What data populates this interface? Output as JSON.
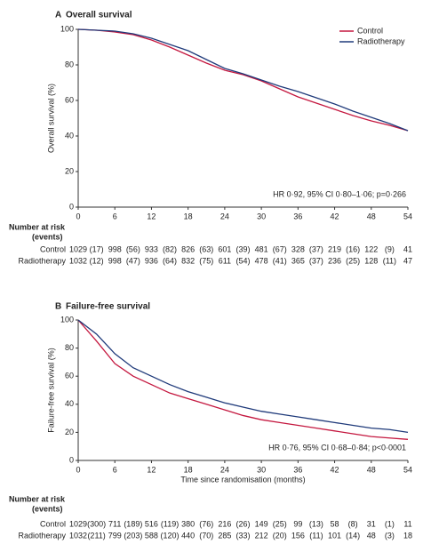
{
  "chart_data": [
    {
      "type": "line",
      "panel": "A",
      "title": "Overall survival",
      "ylabel": "Overall survival (%)",
      "x": [
        0,
        3,
        6,
        9,
        12,
        15,
        18,
        21,
        24,
        27,
        30,
        33,
        36,
        39,
        42,
        45,
        48,
        51,
        54
      ],
      "series": [
        {
          "name": "Control",
          "color": "#c4173f",
          "values": [
            100,
            99.5,
            98.5,
            97,
            94,
            90,
            85.5,
            81,
            77,
            74.5,
            71,
            66.5,
            62,
            58.5,
            55,
            51.5,
            48.5,
            46,
            43
          ]
        },
        {
          "name": "Radiotherapy",
          "color": "#1f3a7a",
          "values": [
            100,
            99.5,
            99,
            97.5,
            95,
            91.5,
            88,
            83,
            78,
            75,
            71.5,
            68,
            65,
            61.5,
            58,
            54,
            50.5,
            47,
            43
          ]
        }
      ],
      "xlim": [
        0,
        54
      ],
      "xticks": [
        0,
        6,
        12,
        18,
        24,
        30,
        36,
        42,
        48,
        54
      ],
      "ylim": [
        0,
        100
      ],
      "yticks": [
        0,
        20,
        40,
        60,
        80,
        100
      ],
      "legend": "upper right",
      "annotation": "HR 0·92, 95% CI 0·80–1·06; p=0·266",
      "risk_table": {
        "title": "Number at risk",
        "subtitle": "(events)",
        "rows": [
          {
            "name": "Control",
            "at_risk": [
              1029,
              998,
              933,
              826,
              601,
              481,
              328,
              219,
              122,
              41
            ],
            "events": [
              "(17)",
              "(56)",
              "(82)",
              "(63)",
              "(39)",
              "(67)",
              "(37)",
              "(16)",
              "(9)"
            ]
          },
          {
            "name": "Radiotherapy",
            "at_risk": [
              1032,
              998,
              936,
              832,
              611,
              478,
              365,
              236,
              128,
              47
            ],
            "events": [
              "(12)",
              "(47)",
              "(64)",
              "(75)",
              "(54)",
              "(41)",
              "(37)",
              "(25)",
              "(11)"
            ]
          }
        ]
      }
    },
    {
      "type": "line",
      "panel": "B",
      "title": "Failure-free survival",
      "ylabel": "Failure-free survival (%)",
      "xlabel": "Time since randomisation (months)",
      "x": [
        0,
        3,
        6,
        9,
        12,
        15,
        18,
        21,
        24,
        27,
        30,
        33,
        36,
        39,
        42,
        45,
        48,
        51,
        54
      ],
      "series": [
        {
          "color": "#c4173f",
          "values": [
            100,
            85,
            69,
            60,
            54,
            48,
            44,
            40,
            36,
            32,
            29,
            27,
            25,
            23,
            21,
            19,
            17,
            16,
            15
          ]
        },
        {
          "color": "#1f3a7a",
          "values": [
            100,
            90,
            76,
            66,
            60,
            54,
            49,
            45,
            41,
            38,
            35,
            33,
            31,
            29,
            27,
            25,
            23,
            22,
            20
          ]
        }
      ],
      "xlim": [
        0,
        54
      ],
      "xticks": [
        0,
        6,
        12,
        18,
        24,
        30,
        36,
        42,
        48,
        54
      ],
      "ylim": [
        0,
        100
      ],
      "yticks": [
        0,
        20,
        40,
        60,
        80,
        100
      ],
      "annotation": "HR 0·76, 95% CI 0·68–0·84; p<0·0001",
      "risk_table": {
        "title": "Number at risk",
        "subtitle": "(events)",
        "rows": [
          {
            "name": "Control",
            "at_risk": [
              1029,
              711,
              516,
              380,
              216,
              149,
              99,
              58,
              31,
              11
            ],
            "events": [
              "(300)",
              "(189)",
              "(119)",
              "(76)",
              "(26)",
              "(25)",
              "(13)",
              "(8)",
              "(1)"
            ]
          },
          {
            "name": "Radiotherapy",
            "at_risk": [
              1032,
              799,
              588,
              440,
              285,
              212,
              156,
              101,
              48,
              18
            ],
            "events": [
              "(211)",
              "(203)",
              "(120)",
              "(70)",
              "(33)",
              "(20)",
              "(11)",
              "(14)",
              "(3)"
            ]
          }
        ]
      }
    }
  ]
}
